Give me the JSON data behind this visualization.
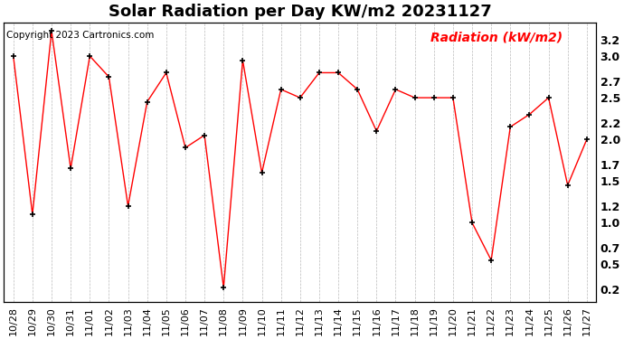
{
  "title": "Solar Radiation per Day KW/m2 20231127",
  "copyright": "Copyright 2023 Cartronics.com",
  "legend_label": "Radiation (kW/m2)",
  "dates": [
    "10/28",
    "10/29",
    "10/30",
    "10/31",
    "11/01",
    "11/02",
    "11/03",
    "11/04",
    "11/05",
    "11/06",
    "11/07",
    "11/08",
    "11/09",
    "11/10",
    "11/11",
    "11/12",
    "11/13",
    "11/14",
    "11/15",
    "11/16",
    "11/17",
    "11/18",
    "11/19",
    "11/20",
    "11/21",
    "11/22",
    "11/23",
    "11/24",
    "11/25",
    "11/26",
    "11/27"
  ],
  "values": [
    3.0,
    1.1,
    3.3,
    1.65,
    3.0,
    2.75,
    1.2,
    2.45,
    2.8,
    1.9,
    2.05,
    0.22,
    2.95,
    1.6,
    2.6,
    2.5,
    2.8,
    2.8,
    2.6,
    2.1,
    2.6,
    2.5,
    2.5,
    2.5,
    1.0,
    0.55,
    2.15,
    2.3,
    2.5,
    1.45,
    2.0
  ],
  "yticks": [
    0.2,
    0.5,
    0.7,
    1.0,
    1.2,
    1.5,
    1.7,
    2.0,
    2.2,
    2.5,
    2.7,
    3.0,
    3.2
  ],
  "line_color": "red",
  "marker_color": "black",
  "grid_color": "#bbbbbb",
  "bg_color": "#ffffff",
  "title_fontsize": 13,
  "copyright_fontsize": 7.5,
  "legend_fontsize": 10,
  "tick_fontsize": 8,
  "ylim": [
    0.05,
    3.4
  ]
}
